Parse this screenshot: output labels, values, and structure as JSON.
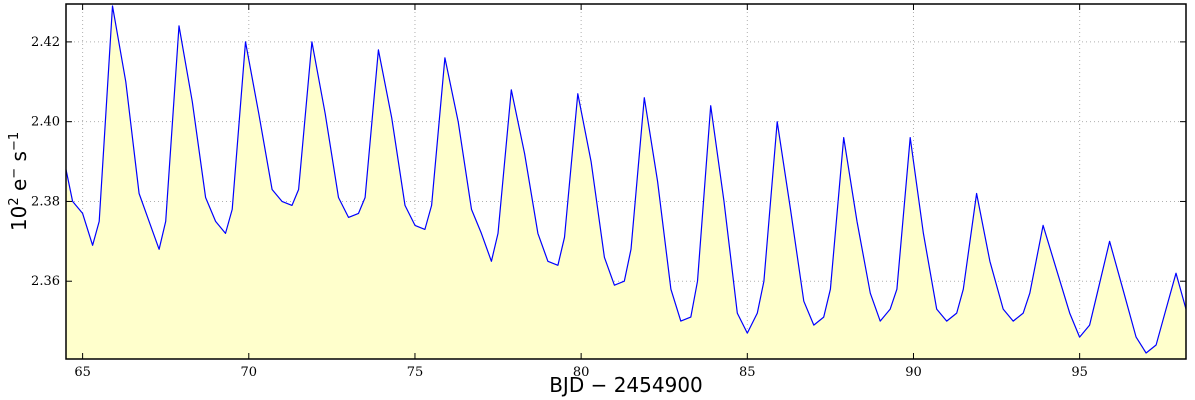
{
  "chart_data": {
    "type": "area",
    "title": "",
    "xlabel": "BJD − 2454900",
    "ylabel_base": "10",
    "ylabel_exp": "2",
    "ylabel_unit1": "e",
    "ylabel_unit1_sup": "−",
    "ylabel_unit2": "s",
    "ylabel_unit2_sup": "−1",
    "xlim": [
      64.5,
      98.2
    ],
    "ylim": [
      2.3405,
      2.4295
    ],
    "xticks": [
      65,
      70,
      75,
      80,
      85,
      90,
      95
    ],
    "xtick_labels": [
      "65",
      "70",
      "75",
      "80",
      "85",
      "90",
      "95"
    ],
    "yticks": [
      2.36,
      2.38,
      2.4,
      2.42
    ],
    "ytick_labels": [
      "2.36",
      "2.38",
      "2.40",
      "2.42"
    ],
    "grid": true,
    "fill_color": "#ffffcc",
    "line_color": "#0000ff",
    "series": [
      {
        "x": [
          64.5,
          64.7,
          65.0,
          65.3,
          65.5,
          65.9,
          66.3,
          66.7,
          67.0,
          67.3,
          67.5,
          67.9,
          68.3,
          68.7,
          69.0,
          69.3,
          69.5,
          69.9,
          70.3,
          70.7,
          71.0,
          71.3,
          71.5,
          71.9,
          72.3,
          72.7,
          73.0,
          73.3,
          73.5,
          73.9,
          74.3,
          74.7,
          75.0,
          75.3,
          75.5,
          75.9,
          76.3,
          76.7,
          77.0,
          77.3,
          77.5,
          77.9,
          78.3,
          78.7,
          79.0,
          79.3,
          79.5,
          79.9,
          80.3,
          80.7,
          81.0,
          81.3,
          81.5,
          81.9,
          82.3,
          82.7,
          83.0,
          83.3,
          83.5,
          83.9,
          84.3,
          84.7,
          85.0,
          85.3,
          85.5,
          85.9,
          86.3,
          86.7,
          87.0,
          87.3,
          87.5,
          87.9,
          88.3,
          88.7,
          89.0,
          89.3,
          89.5,
          89.9,
          90.3,
          90.7,
          91.0,
          91.3,
          91.5,
          91.9,
          92.3,
          92.7,
          93.0,
          93.3,
          93.5,
          93.9,
          94.3,
          94.7,
          95.0,
          95.3,
          95.5,
          95.9,
          96.3,
          96.7,
          97.0,
          97.3,
          97.5,
          97.9,
          98.2
        ],
        "y": [
          2.388,
          2.38,
          2.377,
          2.369,
          2.375,
          2.429,
          2.41,
          2.382,
          2.375,
          2.368,
          2.375,
          2.424,
          2.405,
          2.381,
          2.375,
          2.372,
          2.378,
          2.42,
          2.402,
          2.383,
          2.38,
          2.379,
          2.383,
          2.42,
          2.402,
          2.381,
          2.376,
          2.377,
          2.381,
          2.418,
          2.401,
          2.379,
          2.374,
          2.373,
          2.379,
          2.416,
          2.4,
          2.378,
          2.372,
          2.365,
          2.372,
          2.408,
          2.392,
          2.372,
          2.365,
          2.364,
          2.371,
          2.407,
          2.39,
          2.366,
          2.359,
          2.36,
          2.368,
          2.406,
          2.385,
          2.358,
          2.35,
          2.351,
          2.36,
          2.404,
          2.38,
          2.352,
          2.347,
          2.352,
          2.36,
          2.4,
          2.378,
          2.355,
          2.349,
          2.351,
          2.358,
          2.396,
          2.375,
          2.357,
          2.35,
          2.353,
          2.358,
          2.396,
          2.372,
          2.353,
          2.35,
          2.352,
          2.358,
          2.382,
          2.365,
          2.353,
          2.35,
          2.352,
          2.357,
          2.374,
          2.363,
          2.352,
          2.346,
          2.349,
          2.356,
          2.37,
          2.358,
          2.346,
          2.342,
          2.344,
          2.35,
          2.362,
          2.353
        ]
      }
    ]
  }
}
